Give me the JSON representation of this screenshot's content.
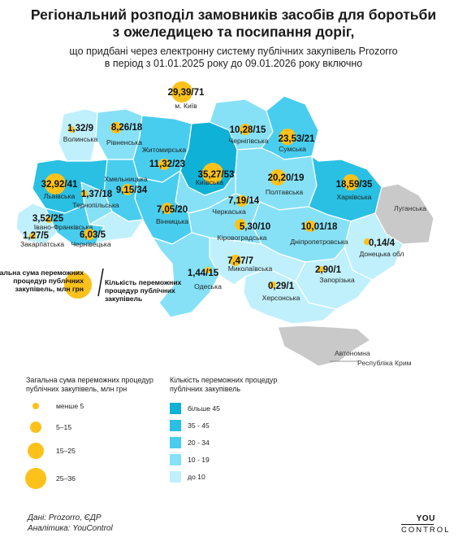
{
  "title": {
    "line1": "Регіональний розподіл замовників засобів для боротьби",
    "line2": "з ожеледицею та посипання доріг,"
  },
  "subtitle": {
    "line1": "що придбані через електронну систему публічних закупівель Prozorro",
    "line2": "в період з 01.01.2025 року до 09.01.2026 року включно"
  },
  "regions": [
    {
      "name": "м. Київ",
      "value": "29,39/71",
      "amount": 29.39,
      "count": 71
    },
    {
      "name": "Волинська",
      "value": "1,32/9",
      "amount": 1.32,
      "count": 9
    },
    {
      "name": "Рівненська",
      "value": "8,26/18",
      "amount": 8.26,
      "count": 18
    },
    {
      "name": "Житомирська",
      "value": "11,32/23",
      "amount": 11.32,
      "count": 23
    },
    {
      "name": "Чернігівська",
      "value": "10,28/15",
      "amount": 10.28,
      "count": 15
    },
    {
      "name": "Сумська",
      "value": "23,53/21",
      "amount": 23.53,
      "count": 21
    },
    {
      "name": "Львівська",
      "value": "32,92/41",
      "amount": 32.92,
      "count": 41
    },
    {
      "name": "Хмельницька",
      "value": "9,15/34",
      "amount": 9.15,
      "count": 34
    },
    {
      "name": "Київська",
      "value": "35,27/53",
      "amount": 35.27,
      "count": 53
    },
    {
      "name": "Полтавська",
      "value": "20,20/19",
      "amount": 20.2,
      "count": 19
    },
    {
      "name": "Харківська",
      "value": "18,59/35",
      "amount": 18.59,
      "count": 35
    },
    {
      "name": "Тернопільська",
      "value": "1,37/18",
      "amount": 1.37,
      "count": 18
    },
    {
      "name": "Вінницька",
      "value": "7,05/20",
      "amount": 7.05,
      "count": 20
    },
    {
      "name": "Черкаська",
      "value": "7,19/14",
      "amount": 7.19,
      "count": 14
    },
    {
      "name": "Луганська",
      "value": "",
      "amount": null,
      "count": null
    },
    {
      "name": "Івано-Франківська",
      "value": "3,52/25",
      "amount": 3.52,
      "count": 25
    },
    {
      "name": "Кіровоградська",
      "value": "5,30/10",
      "amount": 5.3,
      "count": 10
    },
    {
      "name": "Дніпропетровська",
      "value": "10,01/18",
      "amount": 10.01,
      "count": 18
    },
    {
      "name": "Закарпатська",
      "value": "1,27/5",
      "amount": 1.27,
      "count": 5
    },
    {
      "name": "Чернівецька",
      "value": "6,03/5",
      "amount": 6.03,
      "count": 5
    },
    {
      "name": "Донецька обл",
      "value": "0,14/4",
      "amount": 0.14,
      "count": 4
    },
    {
      "name": "Одеська",
      "value": "1,44/15",
      "amount": 1.44,
      "count": 15
    },
    {
      "name": "Миколаївська",
      "value": "7,47/7",
      "amount": 7.47,
      "count": 7
    },
    {
      "name": "Запорізька",
      "value": "2,90/1",
      "amount": 2.9,
      "count": 1
    },
    {
      "name": "Херсонська",
      "value": "0,29/1",
      "amount": 0.29,
      "count": 1
    },
    {
      "name": "Автономна Республіка Крим",
      "value": "",
      "amount": null,
      "count": null
    }
  ],
  "crimea_label": {
    "line1": "Автономна",
    "line2": "Республіка Крим"
  },
  "explain": {
    "amount_line1": "Загальна сума переможних",
    "amount_line2": "процедур публічних",
    "amount_line3": "закупівель, млн грн",
    "count_line1": "Кількість переможних",
    "count_line2": "процедур публічних",
    "count_line3": "закупівель"
  },
  "legend_size": {
    "title_line1": "Загальна сума переможних процедур",
    "title_line2": "публічних закупівель, млн грн",
    "items": [
      "менше 5",
      "5–15",
      "15–25",
      "25–36"
    ]
  },
  "legend_color": {
    "title_line1": "Кількість переможних процедур",
    "title_line2": "публічних закупівель",
    "items": [
      {
        "label": "більше 45",
        "color": "#10b1d6"
      },
      {
        "label": "35 - 45",
        "color": "#29c0e3"
      },
      {
        "label": "20 - 34",
        "color": "#48cdee"
      },
      {
        "label": "10 - 19",
        "color": "#86e1f7"
      },
      {
        "label": "до 10",
        "color": "#c0f0fb"
      }
    ]
  },
  "colors": {
    "bubble": "#fcc21b",
    "occupied": "#c9c9c9",
    "border": "#ffffff"
  },
  "source": {
    "line1": "Дані: Prozorro, ЄДР",
    "line2": "Аналітика: YouControl"
  },
  "logo": {
    "line1": "YOU",
    "line2": "CONTROL"
  }
}
